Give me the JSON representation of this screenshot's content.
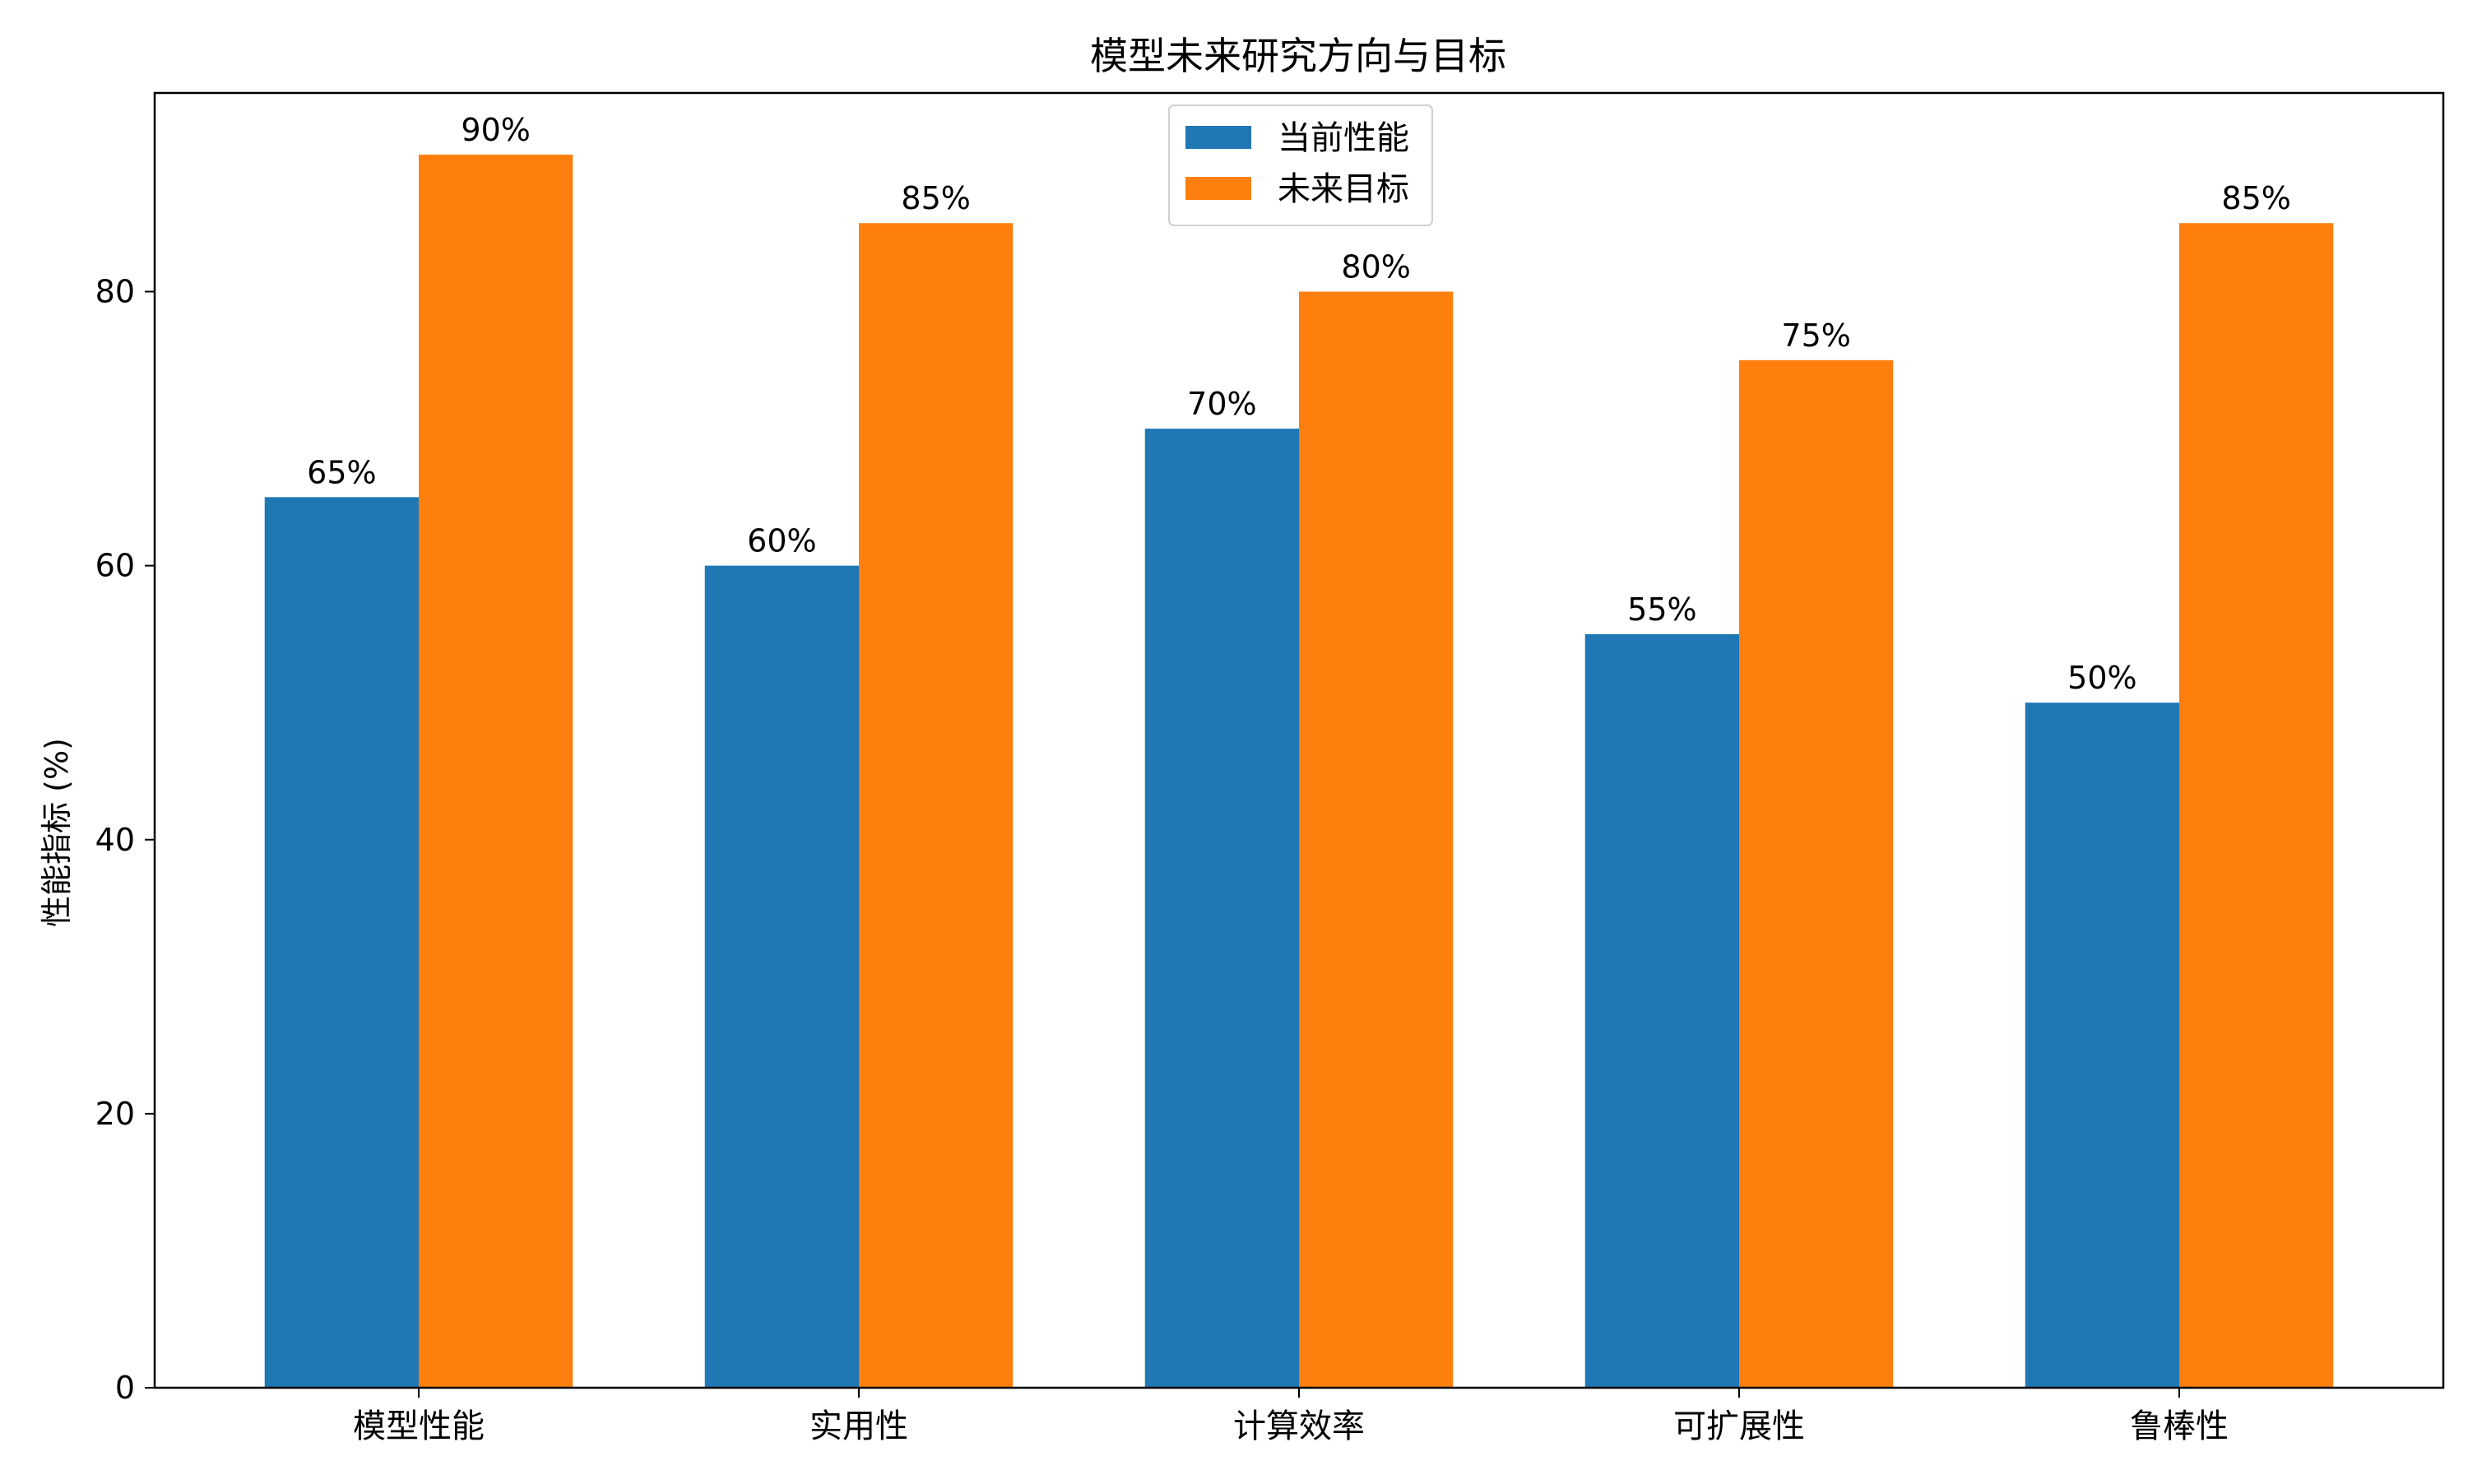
{
  "chart_data": {
    "type": "bar",
    "title": "模型未来研究方向与目标",
    "xlabel": "",
    "ylabel": "性能指标 (%)",
    "categories": [
      "模型性能",
      "实用性",
      "计算效率",
      "可扩展性",
      "鲁棒性"
    ],
    "series": [
      {
        "name": "当前性能",
        "color": "#1f77b4",
        "values": [
          65,
          60,
          70,
          55,
          50
        ],
        "labels": [
          "65%",
          "60%",
          "70%",
          "55%",
          "50%"
        ]
      },
      {
        "name": "未来目标",
        "color": "#ff7f0e",
        "values": [
          90,
          85,
          80,
          75,
          85
        ],
        "labels": [
          "90%",
          "85%",
          "80%",
          "75%",
          "85%"
        ]
      }
    ],
    "ylim": [
      0,
      94.5
    ],
    "yticks": [
      0,
      20,
      40,
      60,
      80
    ],
    "grid": false,
    "legend": "top-center"
  }
}
